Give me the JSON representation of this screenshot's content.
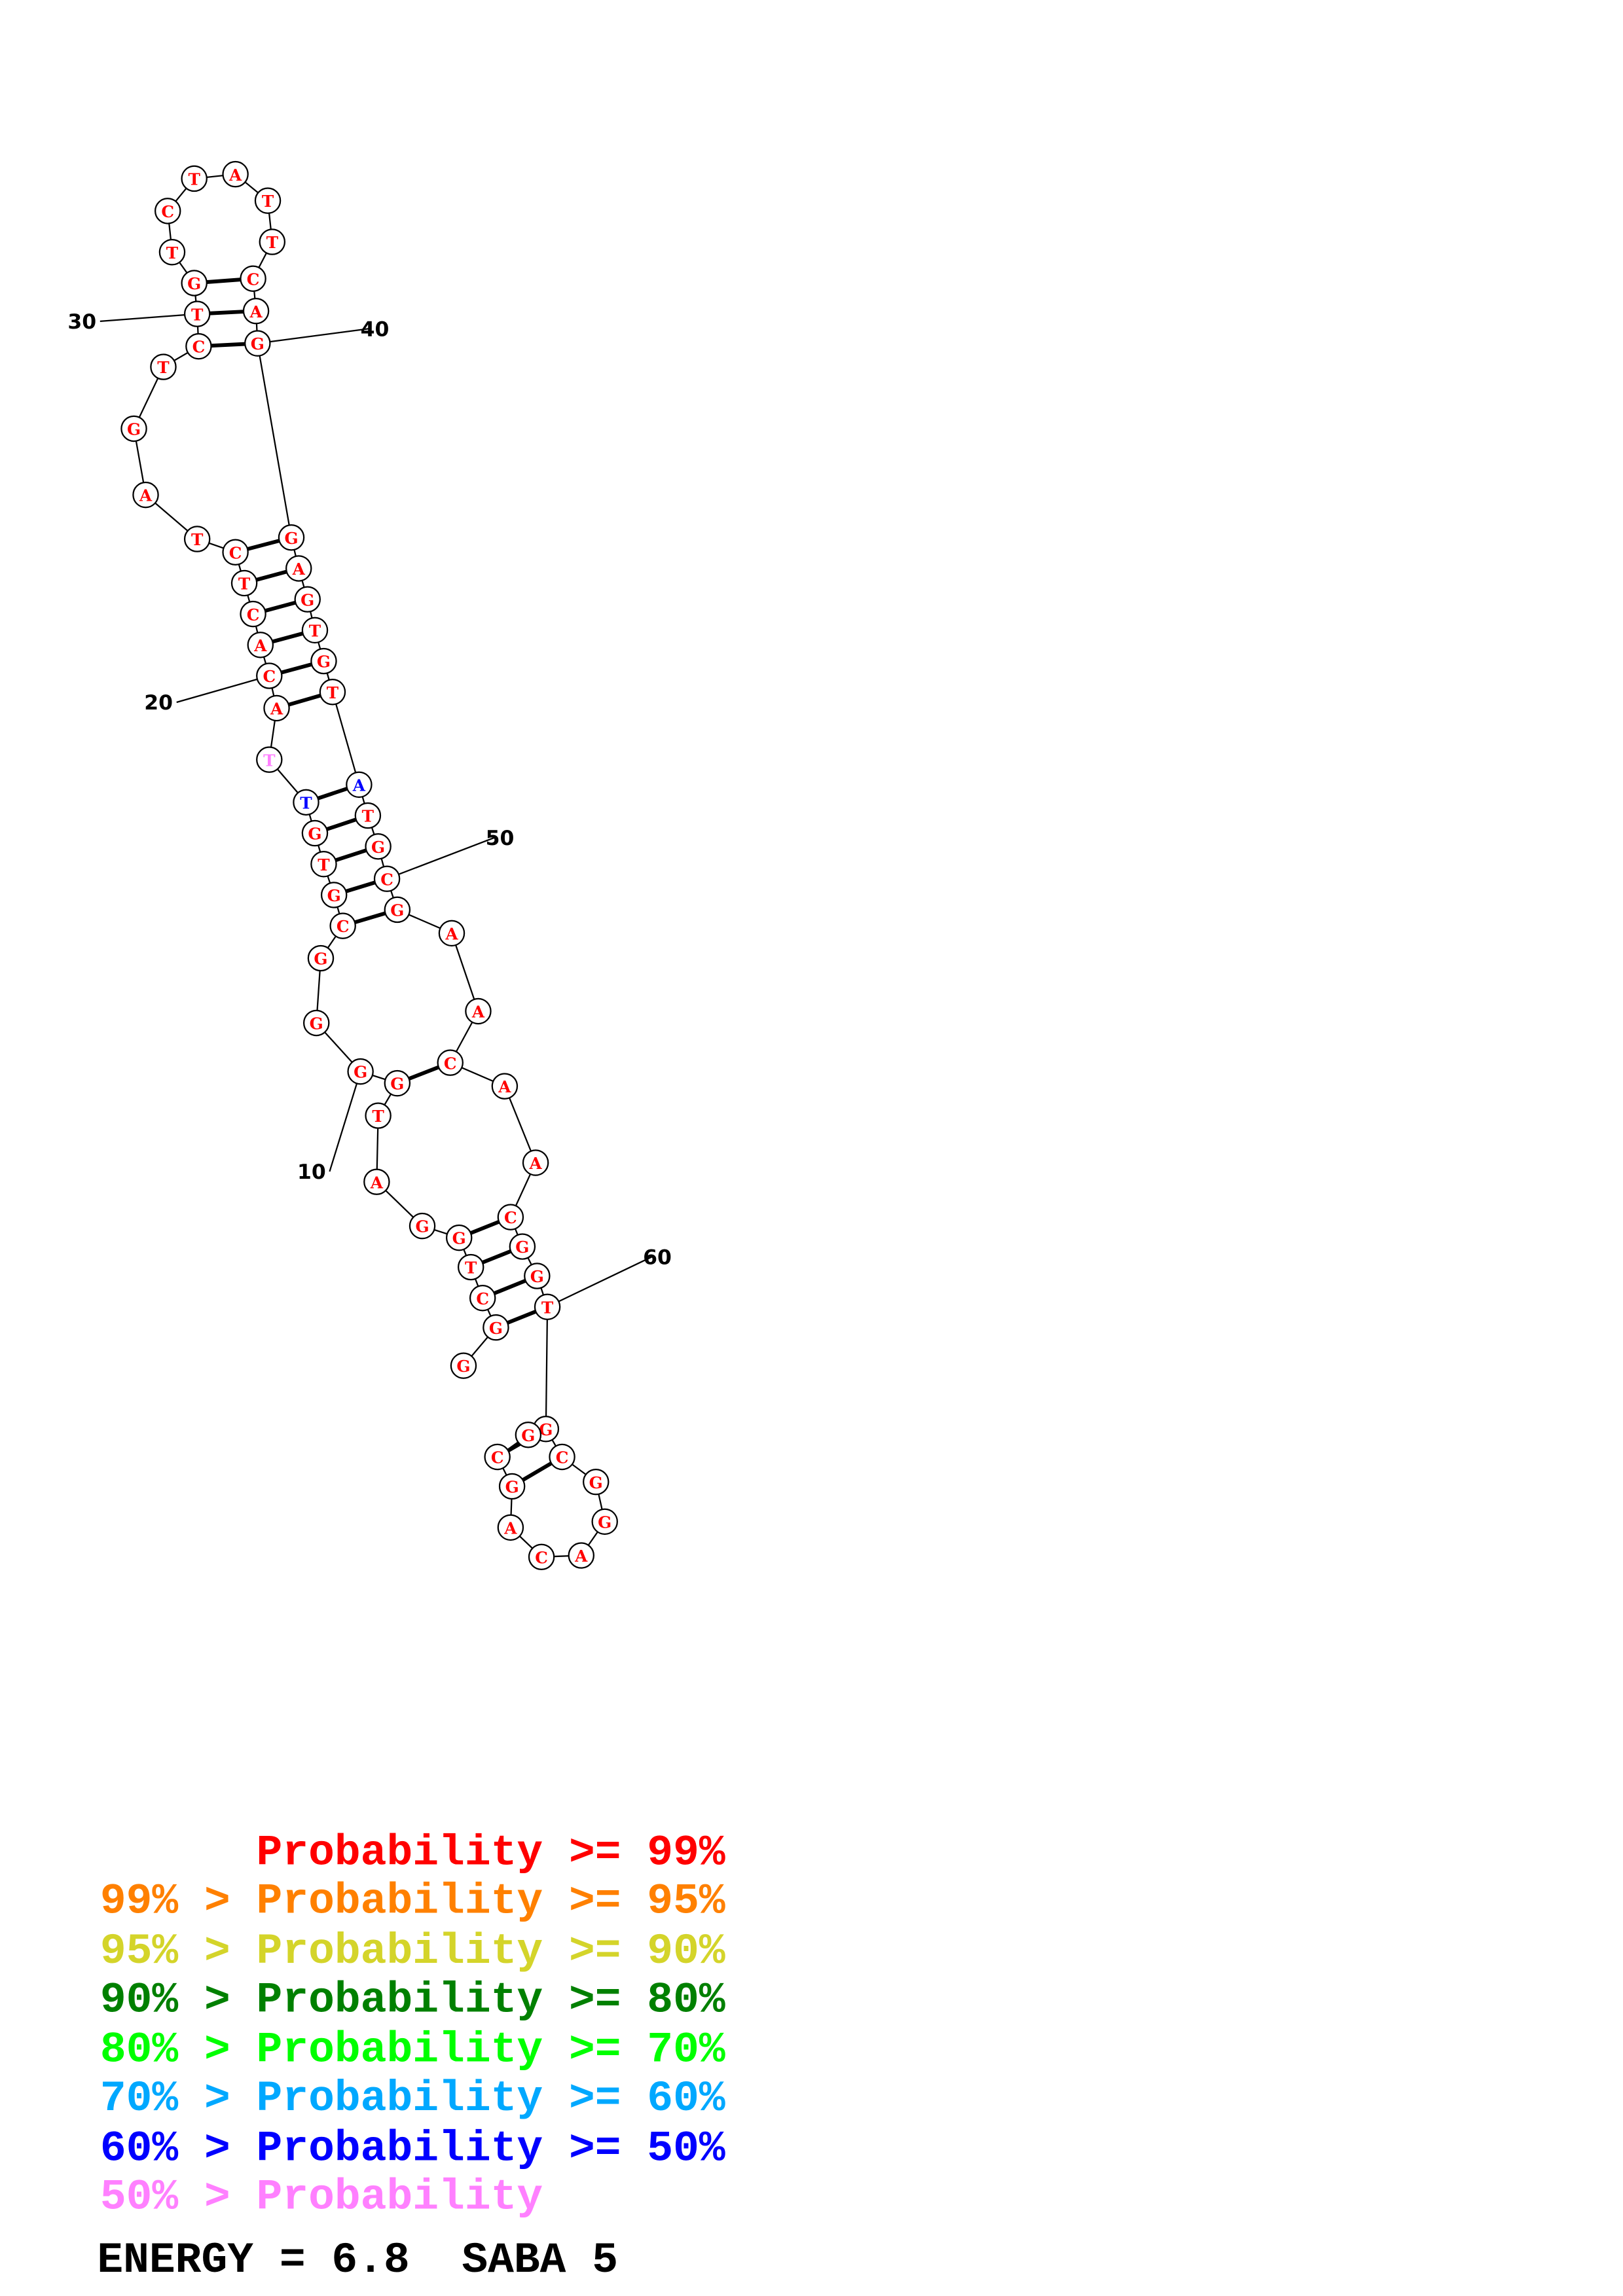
{
  "structure": {
    "sequence": "GGCTGGATGGGGCGTGTTACACTCTAGTCTGTCTATTCAGGAGTGTATGCGAACAACGGTGCGGACAGCG",
    "default_color": "#ff0000",
    "color_overrides": {
      "17": "#0000ff",
      "18": "#ff80ff",
      "47": "#0000ff"
    },
    "pairs": [
      [
        2,
        60
      ],
      [
        3,
        59
      ],
      [
        4,
        58
      ],
      [
        5,
        57
      ],
      [
        9,
        54
      ],
      [
        13,
        51
      ],
      [
        14,
        50
      ],
      [
        15,
        49
      ],
      [
        16,
        48
      ],
      [
        17,
        47
      ],
      [
        19,
        46
      ],
      [
        20,
        45
      ],
      [
        21,
        44
      ],
      [
        22,
        43
      ],
      [
        23,
        42
      ],
      [
        24,
        41
      ],
      [
        29,
        40
      ],
      [
        30,
        39
      ],
      [
        31,
        38
      ],
      [
        61,
        69
      ],
      [
        62,
        68
      ]
    ],
    "position_labels": [
      "10",
      "20",
      "30",
      "40",
      "50",
      "60"
    ]
  },
  "legend": {
    "rows": [
      {
        "text": "      Probability >= 99%",
        "color": "#ff0000"
      },
      {
        "text": "99% > Probability >= 95%",
        "color": "#ff8000"
      },
      {
        "text": "95% > Probability >= 90%",
        "color": "#d4d42a"
      },
      {
        "text": "90% > Probability >= 80%",
        "color": "#008000"
      },
      {
        "text": "80% > Probability >= 70%",
        "color": "#00ff00"
      },
      {
        "text": "70% > Probability >= 60%",
        "color": "#00a8ff"
      },
      {
        "text": "60% > Probability >= 50%",
        "color": "#0000ff"
      },
      {
        "text": "50% > Probability",
        "color": "#ff80ff"
      }
    ],
    "energy_line": "ENERGY = 6.8  SABA 5"
  }
}
